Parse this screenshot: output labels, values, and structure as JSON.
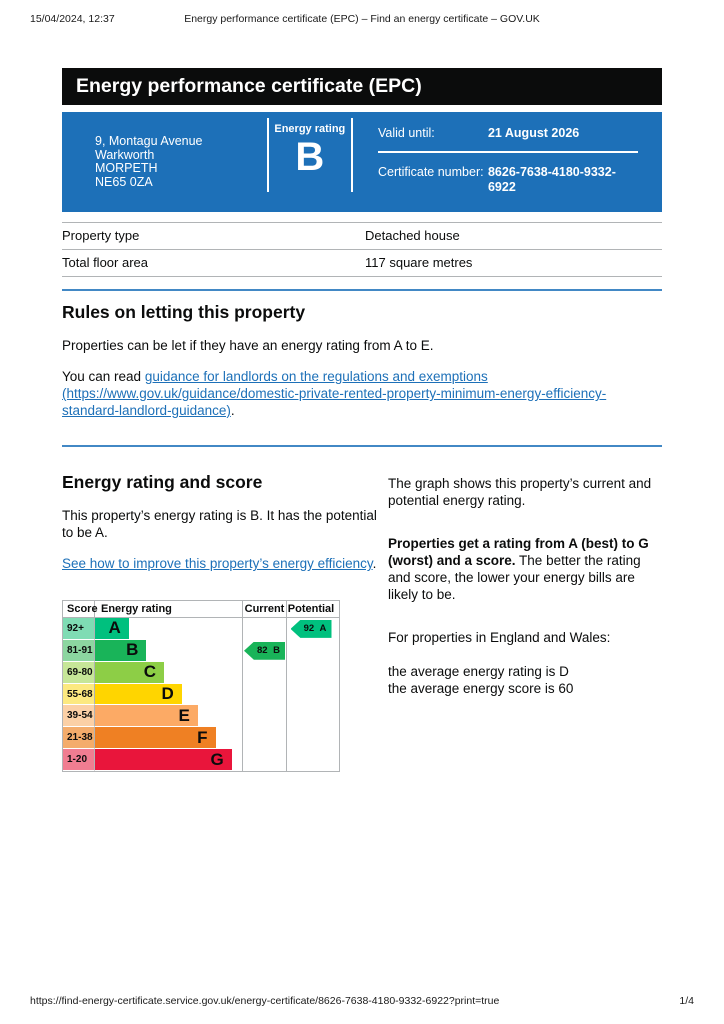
{
  "print_header": {
    "datetime": "15/04/2024, 12:37",
    "title": "Energy performance certificate (EPC) – Find an energy certificate – GOV.UK"
  },
  "banner": {
    "title": "Energy performance certificate (EPC)"
  },
  "summary": {
    "address_lines": [
      "9, Montagu Avenue",
      "Warkworth",
      "MORPETH",
      "NE65 0ZA"
    ],
    "rating_label": "Energy rating",
    "rating_value": "B",
    "valid_until_label": "Valid until:",
    "valid_until_value": "21 August 2026",
    "certificate_number_label": "Certificate number:",
    "certificate_number_value": "8626-7638-4180-9332-6922",
    "box_color": "#1d70b8"
  },
  "property_facts": {
    "rows": [
      {
        "label": "Property type",
        "value": "Detached house"
      },
      {
        "label": "Total floor area",
        "value": "117 square metres"
      }
    ]
  },
  "rules_section": {
    "heading": "Rules on letting this property",
    "paragraph1": "Properties can be let if they have an energy rating from A to E.",
    "paragraph2_prefix": "You can read ",
    "link_text": "guidance for landlords on the regulations and exemptions (https://www.gov.uk/guidance/domestic-private-rented-property-minimum-energy-efficiency-standard-landlord-guidance)",
    "paragraph2_suffix": "."
  },
  "rating_section": {
    "heading": "Energy rating and score",
    "paragraph1": "This property’s energy rating is B. It has the potential to be A.",
    "link_text": "See how to improve this property’s energy efficiency",
    "link_suffix": ".",
    "right": {
      "paragraph1": "The graph shows this property’s current and potential energy rating.",
      "paragraph2_bold": "Properties get a rating from A (best) to G (worst) and a score.",
      "paragraph2_rest": " The better the rating and score, the lower your energy bills are likely to be.",
      "paragraph3": "For properties in England and Wales:",
      "average_line1": "the average energy rating is D",
      "average_line2": "the average energy score is 60"
    }
  },
  "chart_data": {
    "type": "bar",
    "variant": "epc-energy-rating-graph",
    "headers": {
      "score": "Score",
      "rating": "Energy rating",
      "current": "Current",
      "potential": "Potential"
    },
    "bands": [
      {
        "score": "92+",
        "letter": "A",
        "color": "#00c07e",
        "score_color": "#7fdcb4",
        "width_pct": 23
      },
      {
        "score": "81-91",
        "letter": "B",
        "color": "#19b459",
        "score_color": "#8cd6a0",
        "width_pct": 35
      },
      {
        "score": "69-80",
        "letter": "C",
        "color": "#8dce46",
        "score_color": "#c6e698",
        "width_pct": 47
      },
      {
        "score": "55-68",
        "letter": "D",
        "color": "#ffd500",
        "score_color": "#fce980",
        "width_pct": 59
      },
      {
        "score": "39-54",
        "letter": "E",
        "color": "#fcaa65",
        "score_color": "#fbd0a6",
        "width_pct": 70
      },
      {
        "score": "21-38",
        "letter": "F",
        "color": "#ef8023",
        "score_color": "#f4ac6b",
        "width_pct": 82
      },
      {
        "score": "1-20",
        "letter": "G",
        "color": "#e9153b",
        "score_color": "#f07d91",
        "width_pct": 93
      }
    ],
    "current": {
      "label": "82 B",
      "score": 82,
      "band": "B",
      "row_index": 1,
      "color": "#19b459"
    },
    "potential": {
      "label": "92 A",
      "score": 92,
      "band": "A",
      "row_index": 0,
      "color": "#00c07e"
    }
  },
  "print_footer": {
    "url": "https://find-energy-certificate.service.gov.uk/energy-certificate/8626-7638-4180-9332-6922?print=true",
    "page": "1/4"
  }
}
